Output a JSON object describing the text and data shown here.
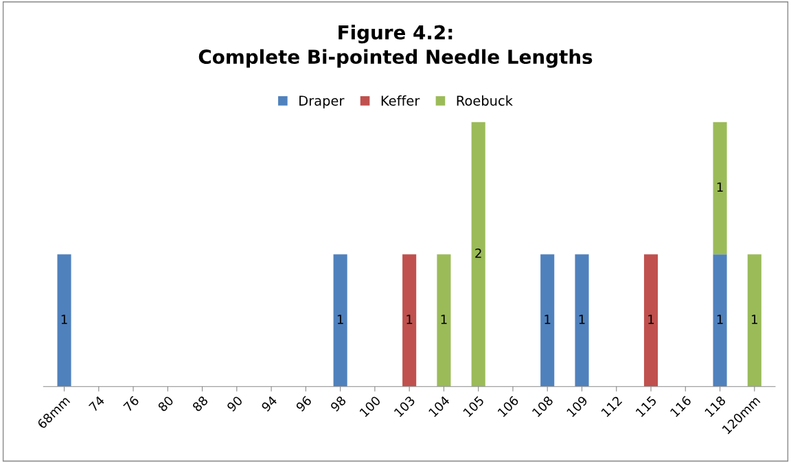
{
  "chart_data": {
    "type": "bar",
    "title": "Figure 4.2:\nComplete Bi-pointed Needle Lengths",
    "categories": [
      "68mm",
      "74",
      "76",
      "80",
      "88",
      "90",
      "94",
      "96",
      "98",
      "100",
      "103",
      "104",
      "105",
      "106",
      "108",
      "109",
      "112",
      "115",
      "116",
      "118",
      "120mm"
    ],
    "series": [
      {
        "name": "Draper",
        "color": "#4f81bd",
        "values": [
          1,
          null,
          null,
          null,
          null,
          null,
          null,
          null,
          1,
          null,
          null,
          null,
          null,
          null,
          1,
          1,
          null,
          null,
          null,
          1,
          null
        ]
      },
      {
        "name": "Keffer",
        "color": "#c0504d",
        "values": [
          null,
          null,
          null,
          null,
          null,
          null,
          null,
          null,
          null,
          null,
          1,
          null,
          null,
          null,
          null,
          null,
          null,
          1,
          null,
          null,
          null
        ]
      },
      {
        "name": "Roebuck",
        "color": "#9bbb59",
        "values": [
          null,
          null,
          null,
          null,
          null,
          null,
          null,
          null,
          null,
          null,
          null,
          1,
          2,
          null,
          null,
          null,
          null,
          null,
          null,
          1,
          1
        ]
      }
    ],
    "stacked": true,
    "data_labels": true,
    "legend": "top",
    "grid": false,
    "tick_labels": "x"
  }
}
